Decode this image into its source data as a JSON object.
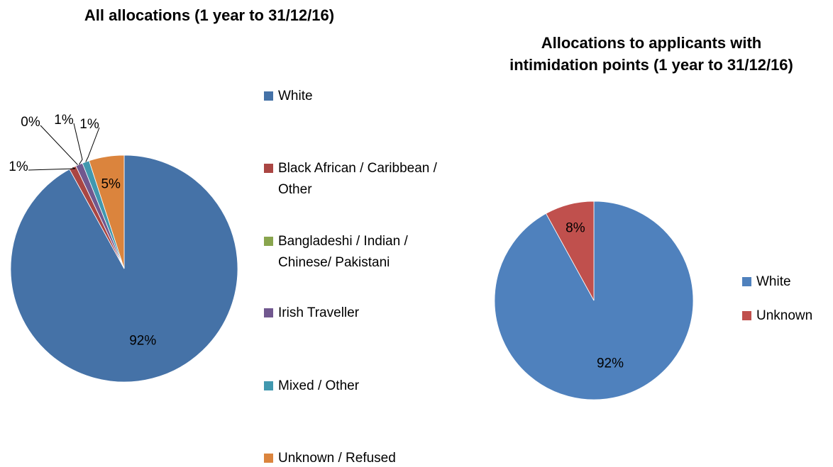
{
  "chart_data": [
    {
      "type": "pie",
      "title": "All allocations (1 year to 31/12/16)",
      "categories": [
        "White",
        "Black African  / Caribbean / Other",
        "Bangladeshi / Indian / Chinese/ Pakistani",
        "Irish Traveller",
        "Mixed / Other",
        "Unknown / Refused"
      ],
      "values": [
        92,
        1,
        0,
        1,
        1,
        5
      ],
      "value_labels": [
        "92%",
        "1%",
        "0%",
        "1%",
        "1%",
        "5%"
      ],
      "colors": [
        "#4572a7",
        "#aa4643",
        "#89a54e",
        "#71588f",
        "#4198af",
        "#db843d"
      ],
      "legend": "right"
    },
    {
      "type": "pie",
      "title": "Allocations to applicants with intimidation points (1 year to 31/12/16)",
      "categories": [
        "White",
        "Unknown"
      ],
      "values": [
        92,
        8
      ],
      "value_labels": [
        "92%",
        "8%"
      ],
      "colors": [
        "#4f81bd",
        "#c0504d"
      ],
      "legend": "right"
    }
  ]
}
